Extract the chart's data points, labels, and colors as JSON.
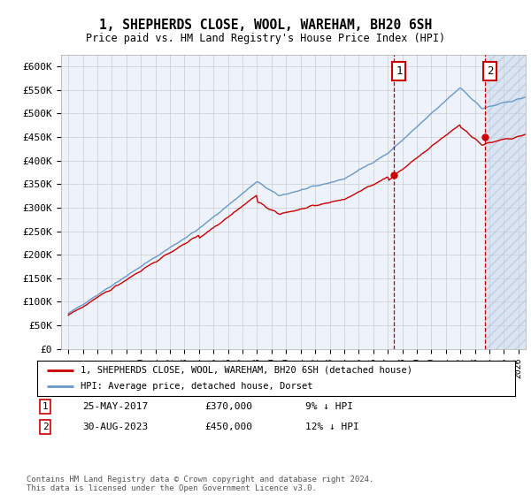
{
  "title": "1, SHEPHERDS CLOSE, WOOL, WAREHAM, BH20 6SH",
  "subtitle": "Price paid vs. HM Land Registry's House Price Index (HPI)",
  "ylim": [
    0,
    625000
  ],
  "yticks": [
    0,
    50000,
    100000,
    150000,
    200000,
    250000,
    300000,
    350000,
    400000,
    450000,
    500000,
    550000,
    600000
  ],
  "ytick_labels": [
    "£0",
    "£50K",
    "£100K",
    "£150K",
    "£200K",
    "£250K",
    "£300K",
    "£350K",
    "£400K",
    "£450K",
    "£500K",
    "£550K",
    "£600K"
  ],
  "hpi_color": "#6699cc",
  "price_color": "#cc0000",
  "annotation_color": "#cc0000",
  "grid_color": "#cccccc",
  "bg_color": "#ffffff",
  "plot_bg": "#eef2fa",
  "legend_label_price": "1, SHEPHERDS CLOSE, WOOL, WAREHAM, BH20 6SH (detached house)",
  "legend_label_hpi": "HPI: Average price, detached house, Dorset",
  "sale1_date": "25-MAY-2017",
  "sale1_price": "£370,000",
  "sale1_pct": "9% ↓ HPI",
  "sale2_date": "30-AUG-2023",
  "sale2_price": "£450,000",
  "sale2_pct": "12% ↓ HPI",
  "footer": "Contains HM Land Registry data © Crown copyright and database right 2024.\nThis data is licensed under the Open Government Licence v3.0.",
  "sale1_year": 2017.4,
  "sale2_year": 2023.67,
  "xmin": 1995,
  "xmax": 2026
}
